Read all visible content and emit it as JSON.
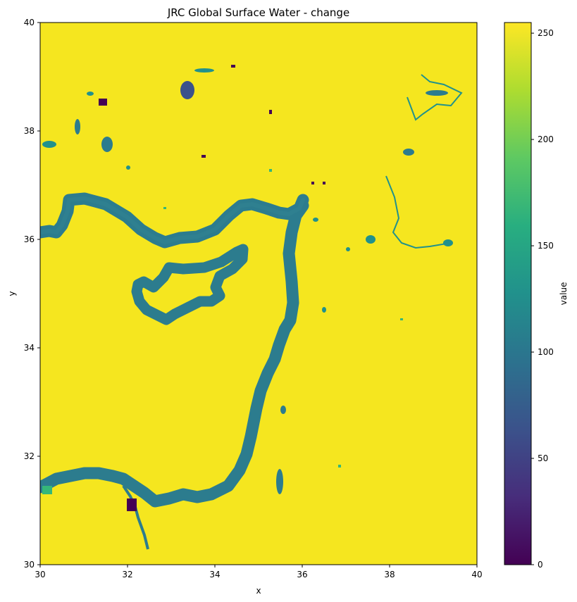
{
  "chart_data": {
    "type": "heatmap",
    "title": "JRC Global Surface Water - change",
    "xlabel": "x",
    "ylabel": "y",
    "xlim": [
      30,
      40
    ],
    "ylim": [
      30,
      40
    ],
    "x_ticks": [
      "30",
      "32",
      "34",
      "36",
      "38",
      "40"
    ],
    "y_ticks": [
      "30",
      "32",
      "34",
      "36",
      "38",
      "40"
    ],
    "colorbar": {
      "label": "value",
      "range": [
        0,
        255
      ],
      "colormap": "viridis",
      "ticks": [
        "0",
        "50",
        "100",
        "150",
        "200",
        "250"
      ]
    },
    "dominant_background_value": 255,
    "main_feature_value": 100,
    "colors": {
      "background": "#f5e61f",
      "coastline": "#2c7c8e",
      "lakes": "#3b528b",
      "low": "#440154",
      "green": "#35b779"
    }
  }
}
